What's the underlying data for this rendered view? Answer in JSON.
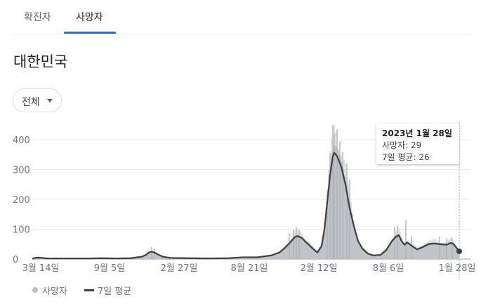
{
  "tabs": [
    {
      "label": "확진자",
      "active": false
    },
    {
      "label": "사망자",
      "active": true
    }
  ],
  "region": "대한민국",
  "filter": {
    "selected": "전체"
  },
  "tooltip": {
    "date": "2023년 1월 28일",
    "deaths_line": "사망자: 29",
    "avg_line": "7일 평균: 26"
  },
  "legend": {
    "deaths": "사망자",
    "avg": "7일 평균"
  },
  "colors": {
    "bars": "#bdc1c6",
    "line": "#3c4043",
    "accent": "#1a73e8"
  },
  "chart_data": {
    "type": "bar",
    "y_ticks": [
      "400",
      "300",
      "200",
      "100",
      "0"
    ],
    "ylim": [
      0,
      460
    ],
    "x_ticks": [
      "3월 14일",
      "9월 5일",
      "2월 27일",
      "8월 21일",
      "2월 12일",
      "8월 6일",
      "1월 28일"
    ],
    "series": [
      {
        "name": "7일 평균",
        "kind": "line",
        "points": [
          [
            0,
            1
          ],
          [
            4,
            4
          ],
          [
            8,
            5
          ],
          [
            14,
            4
          ],
          [
            22,
            2
          ],
          [
            40,
            2
          ],
          [
            60,
            2
          ],
          [
            80,
            2
          ],
          [
            100,
            3
          ],
          [
            120,
            2
          ],
          [
            140,
            3
          ],
          [
            156,
            8
          ],
          [
            162,
            14
          ],
          [
            166,
            22
          ],
          [
            170,
            25
          ],
          [
            174,
            22
          ],
          [
            180,
            14
          ],
          [
            186,
            8
          ],
          [
            196,
            4
          ],
          [
            220,
            3
          ],
          [
            250,
            2
          ],
          [
            280,
            3
          ],
          [
            300,
            6
          ],
          [
            320,
            6
          ],
          [
            340,
            12
          ],
          [
            352,
            22
          ],
          [
            360,
            38
          ],
          [
            368,
            58
          ],
          [
            374,
            74
          ],
          [
            378,
            77
          ],
          [
            384,
            70
          ],
          [
            392,
            52
          ],
          [
            400,
            34
          ],
          [
            406,
            22
          ],
          [
            412,
            44
          ],
          [
            416,
            100
          ],
          [
            420,
            190
          ],
          [
            424,
            280
          ],
          [
            428,
            345
          ],
          [
            430,
            356
          ],
          [
            434,
            345
          ],
          [
            440,
            310
          ],
          [
            446,
            250
          ],
          [
            452,
            170
          ],
          [
            458,
            110
          ],
          [
            464,
            60
          ],
          [
            470,
            35
          ],
          [
            478,
            18
          ],
          [
            486,
            12
          ],
          [
            496,
            14
          ],
          [
            504,
            30
          ],
          [
            512,
            60
          ],
          [
            518,
            75
          ],
          [
            522,
            80
          ],
          [
            526,
            60
          ],
          [
            530,
            48
          ],
          [
            534,
            56
          ],
          [
            540,
            45
          ],
          [
            548,
            32
          ],
          [
            556,
            40
          ],
          [
            564,
            50
          ],
          [
            572,
            52
          ],
          [
            580,
            50
          ],
          [
            590,
            48
          ],
          [
            596,
            54
          ],
          [
            600,
            50
          ],
          [
            604,
            38
          ],
          [
            608,
            26
          ]
        ]
      },
      {
        "name": "사망자",
        "kind": "bars",
        "spikes": [
          [
            170,
            40
          ],
          [
            174,
            34
          ],
          [
            366,
            88
          ],
          [
            372,
            100
          ],
          [
            376,
            108
          ],
          [
            380,
            98
          ],
          [
            420,
            215
          ],
          [
            424,
            355
          ],
          [
            428,
            450
          ],
          [
            430,
            420
          ],
          [
            434,
            435
          ],
          [
            438,
            395
          ],
          [
            442,
            360
          ],
          [
            448,
            320
          ],
          [
            452,
            265
          ],
          [
            516,
            108
          ],
          [
            520,
            112
          ],
          [
            532,
            130
          ],
          [
            540,
            78
          ],
          [
            580,
            75
          ],
          [
            590,
            70
          ],
          [
            598,
            72
          ]
        ]
      }
    ]
  }
}
